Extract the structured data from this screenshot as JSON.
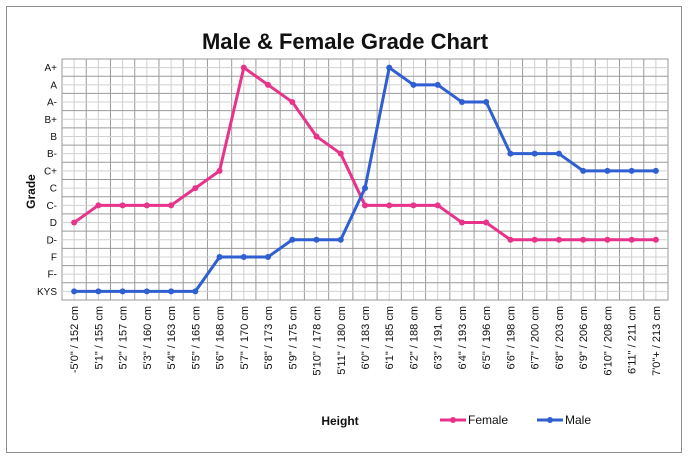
{
  "chart_data": {
    "type": "line",
    "title": "Male & Female Grade Chart",
    "xlabel": "Height",
    "ylabel": "Grade",
    "grid": true,
    "legend_position": "bottom-right",
    "categories": [
      "-5'0\" / 152 cm",
      "5'1\" / 155 cm",
      "5'2\" / 157 cm",
      "5'3\" / 160 cm",
      "5'4\" / 163 cm",
      "5'5\" / 165 cm",
      "5'6\" / 168 cm",
      "5'7\" / 170 cm",
      "5'8\" / 173 cm",
      "5'9\" / 175 cm",
      "5'10\" / 178 cm",
      "5'11\" / 180 cm",
      "6'0\" / 183 cm",
      "6'1\" / 185 cm",
      "6'2\" / 188 cm",
      "6'3\" / 191 cm",
      "6'4\" / 193 cm",
      "6'5\" / 196 cm",
      "6'6\" / 198 cm",
      "6'7\" / 200 cm",
      "6'8\" / 203 cm",
      "6'9\" / 206 cm",
      "6'10\" / 208 cm",
      "6'11\" / 211 cm",
      "7'0\"+ / 213 cm"
    ],
    "y_levels": [
      "A+",
      "A",
      "A-",
      "B+",
      "B",
      "B-",
      "C+",
      "C",
      "C-",
      "D",
      "D-",
      "F",
      "F-",
      "KYS"
    ],
    "series": [
      {
        "name": "Female",
        "color": "#e8338a",
        "values": [
          "D",
          "C-",
          "C-",
          "C-",
          "C-",
          "C",
          "C+",
          "A+",
          "A",
          "A-",
          "B",
          "B-",
          "C-",
          "C-",
          "C-",
          "C-",
          "D",
          "D",
          "D-",
          "D-",
          "D-",
          "D-",
          "D-",
          "D-",
          "D-"
        ]
      },
      {
        "name": "Male",
        "color": "#2f5fd0",
        "values": [
          "KYS",
          "KYS",
          "KYS",
          "KYS",
          "KYS",
          "KYS",
          "F",
          "F",
          "F",
          "D-",
          "D-",
          "D-",
          "C",
          "A+",
          "A",
          "A",
          "A-",
          "A-",
          "B-",
          "B-",
          "B-",
          "C+",
          "C+",
          "C+",
          "C+"
        ]
      }
    ]
  }
}
